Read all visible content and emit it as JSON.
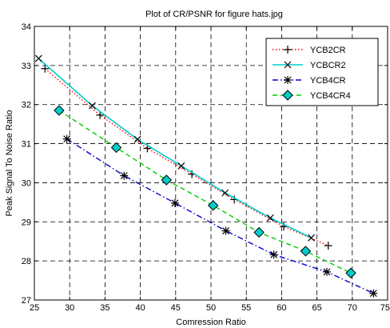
{
  "chart_data": {
    "type": "line",
    "title": "Plot of CR/PSNR for figure hats.jpg",
    "xlabel": "Comression Ratio",
    "ylabel": "Peak Signal To Noise Ratio",
    "xlim": [
      25,
      75
    ],
    "ylim": [
      27,
      34
    ],
    "xticks": [
      25,
      30,
      35,
      40,
      45,
      50,
      55,
      60,
      65,
      70,
      75
    ],
    "yticks": [
      27,
      28,
      29,
      30,
      31,
      32,
      33,
      34
    ],
    "grid": true,
    "legend_position": "top-right",
    "series": [
      {
        "name": "YCB2CR",
        "color": "#ff0000",
        "line_style": "dotted",
        "marker": "plus",
        "x": [
          26.5,
          34.3,
          41.0,
          47.3,
          53.3,
          60.3,
          66.6
        ],
        "y": [
          32.92,
          31.73,
          30.88,
          30.22,
          29.57,
          28.88,
          28.39
        ]
      },
      {
        "name": "YCBCR2",
        "color": "#00cccc",
        "line_style": "solid",
        "marker": "x",
        "x": [
          25.6,
          33.2,
          39.6,
          45.8,
          52.0,
          58.4,
          64.2
        ],
        "y": [
          33.18,
          31.97,
          31.11,
          30.43,
          29.74,
          29.1,
          28.59
        ]
      },
      {
        "name": "YCB4CR",
        "color": "#0000cc",
        "line_style": "dashdot",
        "marker": "star",
        "x": [
          29.6,
          37.7,
          44.9,
          52.1,
          58.9,
          66.4,
          73.0
        ],
        "y": [
          31.12,
          30.18,
          29.48,
          28.77,
          28.16,
          27.72,
          27.17
        ]
      },
      {
        "name": "YCB4CR4",
        "color": "#00cc00",
        "line_style": "dashed",
        "marker": "diamond",
        "marker_fill": "#00cccc",
        "x": [
          28.5,
          36.6,
          43.7,
          50.3,
          56.8,
          63.4,
          69.8
        ],
        "y": [
          31.85,
          30.9,
          30.07,
          29.42,
          28.73,
          28.25,
          27.69
        ]
      }
    ]
  }
}
